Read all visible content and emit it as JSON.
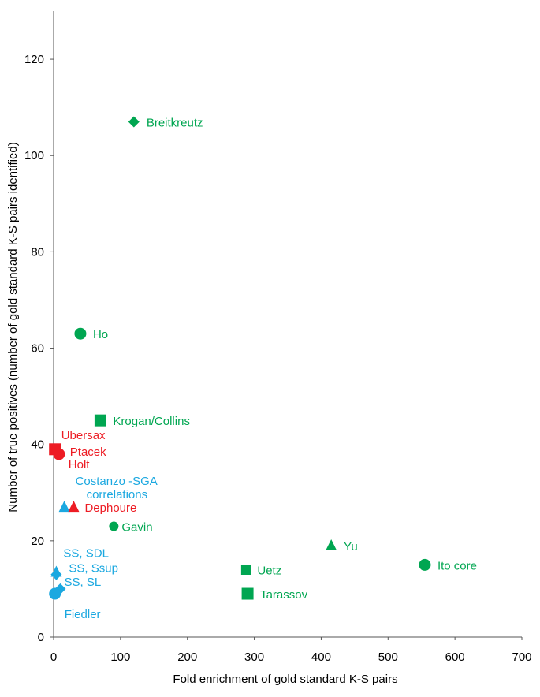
{
  "chart_data": {
    "type": "scatter",
    "title": "",
    "xlabel": "Fold enrichment of gold standard K-S pairs",
    "ylabel": "Number of true positives (number of gold standard K-S pairs identified)",
    "xlim": [
      0,
      700
    ],
    "ylim": [
      0,
      130
    ],
    "xticks": [
      0,
      100,
      200,
      300,
      400,
      500,
      600,
      700
    ],
    "yticks": [
      0,
      20,
      40,
      60,
      80,
      100,
      120
    ],
    "grid": false,
    "colors": {
      "green": "#00a651",
      "red": "#ed1c24",
      "blue": "#1ba8e0"
    },
    "points": [
      {
        "name": "Breitkreutz",
        "label": "Breitkreutz",
        "x": 120,
        "y": 107,
        "marker": "diamond",
        "color": "green"
      },
      {
        "name": "Ho",
        "label": "Ho",
        "x": 40,
        "y": 63,
        "marker": "circle",
        "color": "green"
      },
      {
        "name": "Krogan/Collins",
        "label": "Krogan/Collins",
        "x": 70,
        "y": 45,
        "marker": "square",
        "color": "green"
      },
      {
        "name": "Ubersax",
        "label": "Ubersax",
        "x": 2,
        "y": 39,
        "marker": "square",
        "color": "red"
      },
      {
        "name": "Ptacek",
        "label": "Ptacek",
        "x": 8,
        "y": 38.5,
        "marker": "diamond",
        "color": "red"
      },
      {
        "name": "Holt",
        "label": "Holt",
        "x": 8,
        "y": 38,
        "marker": "circle",
        "color": "red"
      },
      {
        "name": "Costanzo-SGA correlations",
        "label": "Costanzo -SGA correlations",
        "x": 16,
        "y": 27,
        "marker": "triangle",
        "color": "blue"
      },
      {
        "name": "Dephoure",
        "label": "Dephoure",
        "x": 30,
        "y": 27,
        "marker": "triangle",
        "color": "red"
      },
      {
        "name": "Gavin",
        "label": "Gavin",
        "x": 90,
        "y": 23,
        "marker": "circle-small",
        "color": "green"
      },
      {
        "name": "Yu",
        "label": "Yu",
        "x": 415,
        "y": 19,
        "marker": "triangle",
        "color": "green"
      },
      {
        "name": "Ito core",
        "label": "Ito core",
        "x": 555,
        "y": 15,
        "marker": "circle",
        "color": "green"
      },
      {
        "name": "Uetz",
        "label": "Uetz",
        "x": 288,
        "y": 14,
        "marker": "square-small",
        "color": "green"
      },
      {
        "name": "Tarassov",
        "label": "Tarassov",
        "x": 290,
        "y": 9,
        "marker": "square",
        "color": "green"
      },
      {
        "name": "SS, SDL",
        "label": "SS, SDL",
        "x": 4,
        "y": 13.5,
        "marker": "triangle",
        "color": "blue"
      },
      {
        "name": "SS, Ssup",
        "label": "SS, Ssup",
        "x": 4,
        "y": 13,
        "marker": "diamond",
        "color": "blue"
      },
      {
        "name": "SS, SL",
        "label": "SS, SL",
        "x": 10,
        "y": 10,
        "marker": "diamond",
        "color": "blue"
      },
      {
        "name": "Fiedler",
        "label": "Fiedler",
        "x": 2,
        "y": 9,
        "marker": "circle",
        "color": "blue"
      }
    ]
  }
}
